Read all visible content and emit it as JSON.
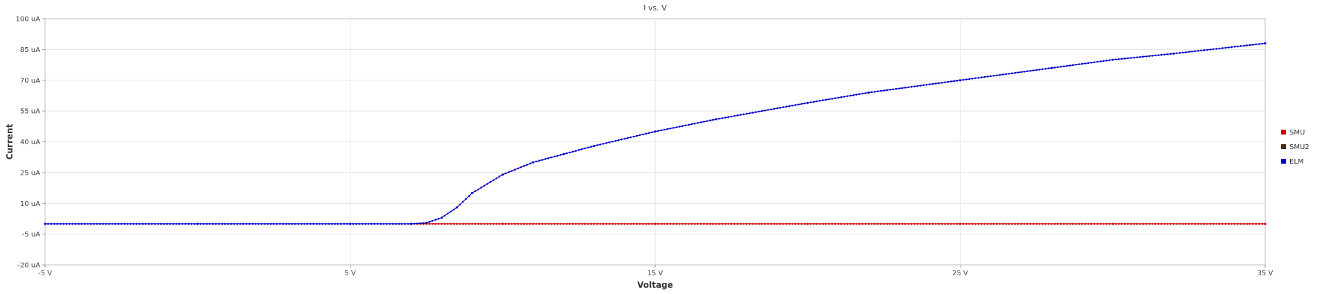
{
  "chart_data": {
    "type": "line",
    "title": "I vs. V",
    "xlabel": "Voltage",
    "ylabel": "Current",
    "xlim": [
      -5,
      35
    ],
    "ylim": [
      -20,
      100
    ],
    "x_ticks": [
      -5,
      5,
      15,
      25,
      35
    ],
    "x_tick_labels": [
      "-5 V",
      "5 V",
      "15 V",
      "25 V",
      "35 V"
    ],
    "y_ticks": [
      -20,
      -5,
      10,
      25,
      40,
      55,
      70,
      85,
      100
    ],
    "y_tick_labels": [
      "-20 uA",
      "-5 uA",
      "10 uA",
      "25 uA",
      "40 uA",
      "55 uA",
      "70 uA",
      "85 uA",
      "100 uA"
    ],
    "grid": true,
    "legend_position": "right",
    "series": [
      {
        "name": "SMU",
        "color": "#cc0000",
        "x": [
          7,
          10,
          15,
          20,
          25,
          30,
          35
        ],
        "y": [
          0,
          0,
          0,
          0,
          0,
          0,
          0
        ]
      },
      {
        "name": "SMU2",
        "color": "#4a2a1a",
        "x": [],
        "y": []
      },
      {
        "name": "ELM",
        "color": "#0000cc",
        "x": [
          -5,
          0,
          5,
          7,
          7.5,
          8,
          8.5,
          9,
          10,
          11,
          12,
          13,
          15,
          17,
          20,
          22,
          25,
          28,
          30,
          32,
          35
        ],
        "y": [
          0,
          0,
          0,
          0,
          0.5,
          3,
          8,
          15,
          24,
          30,
          34,
          38,
          45,
          51,
          59,
          64,
          70,
          76,
          80,
          83,
          88
        ]
      }
    ]
  }
}
